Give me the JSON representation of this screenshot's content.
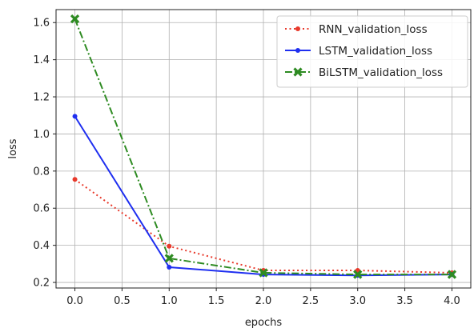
{
  "chart_data": {
    "type": "line",
    "title": "",
    "xlabel": "epochs",
    "ylabel": "loss",
    "x": [
      0,
      1,
      2,
      3,
      4
    ],
    "xlim": [
      -0.2,
      4.2
    ],
    "ylim": [
      0.17,
      1.67
    ],
    "xticks": [
      "0.0",
      "0.5",
      "1.0",
      "1.5",
      "2.0",
      "2.5",
      "3.0",
      "3.5",
      "4.0"
    ],
    "yticks": [
      "0.2",
      "0.4",
      "0.6",
      "0.8",
      "1.0",
      "1.2",
      "1.4",
      "1.6"
    ],
    "grid": true,
    "legend_position": "top-right",
    "series": [
      {
        "name": "RNN_validation_loss",
        "values": [
          0.755,
          0.395,
          0.265,
          0.265,
          0.252
        ],
        "color": "#e8392b",
        "line_style": "dotted",
        "marker": "dot"
      },
      {
        "name": "LSTM_validation_loss",
        "values": [
          1.095,
          0.282,
          0.243,
          0.238,
          0.243
        ],
        "color": "#1f2ff0",
        "line_style": "solid",
        "marker": "dot"
      },
      {
        "name": "BiLSTM_validation_loss",
        "values": [
          1.62,
          0.33,
          0.252,
          0.243,
          0.243
        ],
        "color": "#2e8b22",
        "line_style": "dashdot",
        "marker": "x"
      }
    ]
  }
}
